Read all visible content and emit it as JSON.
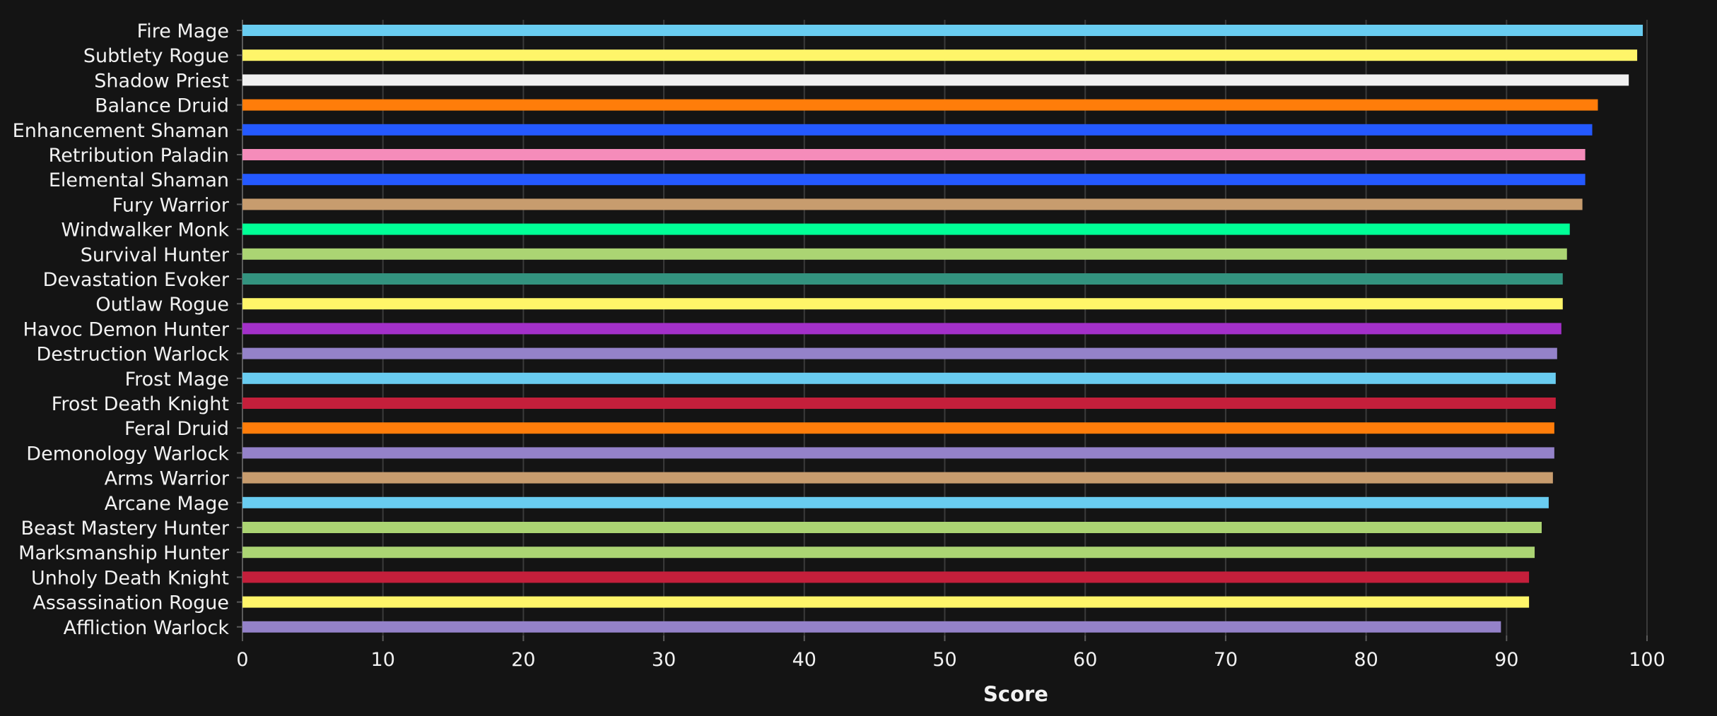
{
  "chart_data": {
    "type": "bar",
    "orientation": "horizontal",
    "xlabel": "Score",
    "ylabel": "",
    "xlim": [
      0,
      100
    ],
    "x_ticks": [
      0,
      10,
      20,
      30,
      40,
      50,
      60,
      70,
      80,
      90,
      100
    ],
    "grid": true,
    "categories": [
      "Fire Mage",
      "Subtlety Rogue",
      "Shadow Priest",
      "Balance Druid",
      "Enhancement Shaman",
      "Retribution Paladin",
      "Elemental Shaman",
      "Fury Warrior",
      "Windwalker Monk",
      "Survival Hunter",
      "Devastation Evoker",
      "Outlaw Rogue",
      "Havoc Demon Hunter",
      "Destruction Warlock",
      "Frost Mage",
      "Frost Death Knight",
      "Feral Druid",
      "Demonology Warlock",
      "Arms Warrior",
      "Arcane Mage",
      "Beast Mastery Hunter",
      "Marksmanship Hunter",
      "Unholy Death Knight",
      "Assassination Rogue",
      "Affliction Warlock"
    ],
    "values": [
      99.7,
      99.3,
      98.7,
      96.5,
      96.1,
      95.6,
      95.6,
      95.4,
      94.5,
      94.3,
      94.0,
      94.0,
      93.9,
      93.6,
      93.5,
      93.5,
      93.4,
      93.4,
      93.3,
      93.0,
      92.5,
      92.0,
      91.6,
      91.6,
      89.6
    ],
    "colors": [
      "#69CCF0",
      "#FFF569",
      "#F0F0F0",
      "#FF7D0A",
      "#2459FF",
      "#F58CBA",
      "#2459FF",
      "#C79C6E",
      "#00FF96",
      "#ABD473",
      "#33937F",
      "#FFF569",
      "#A330C9",
      "#9482C9",
      "#69CCF0",
      "#C41F3B",
      "#FF7D0A",
      "#9482C9",
      "#C79C6E",
      "#69CCF0",
      "#ABD473",
      "#ABD473",
      "#C41F3B",
      "#FFF569",
      "#9482C9"
    ],
    "text_color": "#F2F2F2",
    "grid_color": "#3A3A3A",
    "axis_color": "#5A5A5A"
  }
}
